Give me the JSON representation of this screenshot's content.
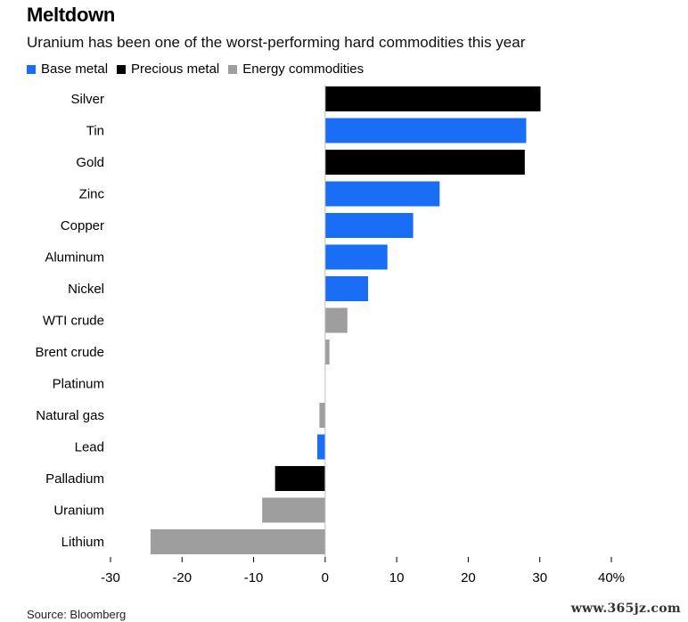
{
  "chart_data": {
    "type": "bar",
    "orientation": "horizontal",
    "title": "Meltdown",
    "subtitle": "Uranium has been one of the worst-performing hard commodities this year",
    "legend": [
      {
        "name": "Base metal",
        "color": "#1a6ef5"
      },
      {
        "name": "Precious metal",
        "color": "#000000"
      },
      {
        "name": "Energy commodities",
        "color": "#9e9e9e"
      }
    ],
    "categories": [
      "Silver",
      "Tin",
      "Gold",
      "Zinc",
      "Copper",
      "Aluminum",
      "Nickel",
      "WTI crude",
      "Brent crude",
      "Platinum",
      "Natural gas",
      "Lead",
      "Palladium",
      "Uranium",
      "Lithium"
    ],
    "groups": [
      "Precious metal",
      "Base metal",
      "Precious metal",
      "Base metal",
      "Base metal",
      "Base metal",
      "Base metal",
      "Energy commodities",
      "Energy commodities",
      "Precious metal",
      "Energy commodities",
      "Base metal",
      "Precious metal",
      "Energy commodities",
      "Energy commodities"
    ],
    "values": [
      30.1,
      28.1,
      27.9,
      16,
      12.3,
      8.7,
      6,
      3.1,
      0.6,
      0,
      -0.8,
      -1.1,
      -7,
      -8.8,
      -24.4
    ],
    "xlim": [
      -30,
      40
    ],
    "xticks": [
      -30,
      -20,
      -10,
      0,
      10,
      20,
      30,
      40
    ],
    "xtick_labels": [
      "-30",
      "-20",
      "-10",
      "0",
      "10",
      "20",
      "30",
      "40%"
    ],
    "grid": false,
    "legend_position": "top-left"
  },
  "source": "Source: Bloomberg",
  "watermark": "www.365jz.com"
}
